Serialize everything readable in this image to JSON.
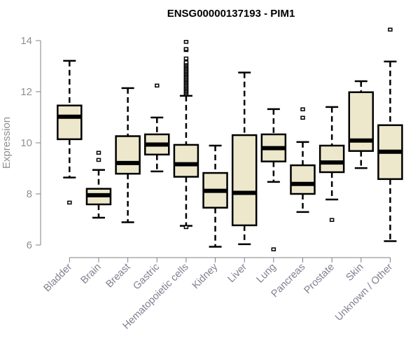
{
  "chart_data": {
    "type": "boxplot",
    "title": "ENSG00000137193 - PIM1",
    "xlabel": "",
    "ylabel": "Expression",
    "ylim": [
      6,
      14
    ],
    "yticks": [
      6,
      8,
      10,
      12,
      14
    ],
    "grid": false,
    "colors": {
      "box_fill": "#ede7cc",
      "stroke": "#000000",
      "axis": "#808080",
      "label": "#808090"
    },
    "categories": [
      "Bladder",
      "Brain",
      "Breast",
      "Gastric",
      "Hematopoietic cells",
      "Kidney",
      "Liver",
      "Lung",
      "Pancreas",
      "Prostate",
      "Skin",
      "Unknown / Other"
    ],
    "boxes": [
      {
        "name": "Bladder",
        "whisker_low": 8.64,
        "q1": 10.14,
        "median": 11.02,
        "q3": 11.46,
        "whisker_high": 13.21,
        "outliers": [
          7.66
        ]
      },
      {
        "name": "Brain",
        "whisker_low": 7.07,
        "q1": 7.59,
        "median": 7.95,
        "q3": 8.2,
        "whisker_high": 8.94,
        "outliers": [
          9.33,
          9.61
        ]
      },
      {
        "name": "Breast",
        "whisker_low": 6.89,
        "q1": 8.79,
        "median": 9.21,
        "q3": 10.26,
        "whisker_high": 12.14,
        "outliers": []
      },
      {
        "name": "Gastric",
        "whisker_low": 8.88,
        "q1": 9.54,
        "median": 9.93,
        "q3": 10.33,
        "whisker_high": 10.99,
        "outliers": [
          12.24
        ]
      },
      {
        "name": "Hematopoietic cells",
        "whisker_low": 6.75,
        "q1": 8.67,
        "median": 9.16,
        "q3": 9.92,
        "whisker_high": 11.84,
        "outliers": [
          6.7,
          11.9,
          11.95,
          12.0,
          12.05,
          12.1,
          12.15,
          12.2,
          12.25,
          12.3,
          12.35,
          12.4,
          12.45,
          12.5,
          12.55,
          12.6,
          12.65,
          12.7,
          12.75,
          12.8,
          12.85,
          12.9,
          12.95,
          13.0,
          13.05,
          13.1,
          13.15,
          13.3,
          13.63,
          13.67,
          13.95
        ]
      },
      {
        "name": "Kidney",
        "whisker_low": 5.93,
        "q1": 7.46,
        "median": 8.12,
        "q3": 8.82,
        "whisker_high": 9.89,
        "outliers": []
      },
      {
        "name": "Liver",
        "whisker_low": 6.03,
        "q1": 6.77,
        "median": 8.04,
        "q3": 10.3,
        "whisker_high": 12.75,
        "outliers": []
      },
      {
        "name": "Lung",
        "whisker_low": 8.47,
        "q1": 9.27,
        "median": 9.79,
        "q3": 10.33,
        "whisker_high": 11.32,
        "outliers": [
          5.83
        ]
      },
      {
        "name": "Pancreas",
        "whisker_low": 7.29,
        "q1": 8.0,
        "median": 8.39,
        "q3": 9.12,
        "whisker_high": 10.03,
        "outliers": [
          10.98,
          11.31
        ]
      },
      {
        "name": "Prostate",
        "whisker_low": 7.78,
        "q1": 8.85,
        "median": 9.23,
        "q3": 9.89,
        "whisker_high": 11.4,
        "outliers": [
          6.98
        ]
      },
      {
        "name": "Skin",
        "whisker_low": 9.01,
        "q1": 9.68,
        "median": 10.09,
        "q3": 11.98,
        "whisker_high": 12.41,
        "outliers": []
      },
      {
        "name": "Unknown / Other",
        "whisker_low": 6.15,
        "q1": 8.58,
        "median": 9.65,
        "q3": 10.69,
        "whisker_high": 13.18,
        "outliers": [
          14.43
        ]
      }
    ]
  }
}
